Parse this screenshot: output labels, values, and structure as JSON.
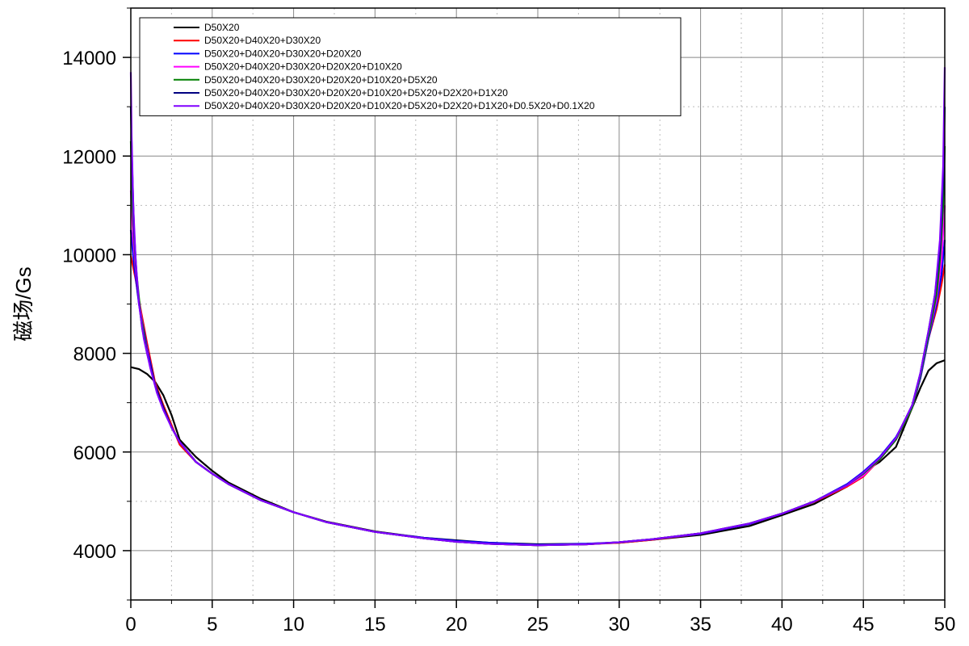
{
  "chart_data": {
    "type": "line",
    "title": "",
    "xlabel": "",
    "ylabel": "磁场/Gs",
    "xlim": [
      0,
      50
    ],
    "ylim": [
      3000,
      15000
    ],
    "x_ticks": [
      0,
      5,
      10,
      15,
      20,
      25,
      30,
      35,
      40,
      45,
      50
    ],
    "y_ticks": [
      4000,
      6000,
      8000,
      10000,
      12000,
      14000
    ],
    "grid": true,
    "legend_position": "top-left",
    "series": [
      {
        "name": "D50X20",
        "color": "#000000",
        "x": [
          0,
          0.5,
          1,
          1.5,
          2,
          2.5,
          3,
          4,
          5,
          6,
          8,
          10,
          12,
          15,
          18,
          20,
          22,
          25,
          28,
          30,
          32,
          35,
          38,
          40,
          42,
          44,
          45,
          46,
          47,
          47.5,
          48,
          48.5,
          49,
          49.5,
          50
        ],
        "y": [
          7720,
          7680,
          7580,
          7420,
          7150,
          6750,
          6250,
          5900,
          5620,
          5380,
          5050,
          4780,
          4590,
          4390,
          4260,
          4210,
          4160,
          4130,
          4140,
          4160,
          4220,
          4320,
          4500,
          4720,
          4950,
          5300,
          5600,
          5800,
          6100,
          6500,
          6900,
          7300,
          7650,
          7800,
          7860
        ]
      },
      {
        "name": "D50X20+D40X20+D30X20",
        "color": "#ff0000",
        "x": [
          0,
          0.3,
          0.6,
          1,
          1.5,
          2,
          2.5,
          3,
          4,
          5,
          6,
          8,
          10,
          12,
          15,
          18,
          20,
          22,
          25,
          28,
          30,
          32,
          35,
          38,
          40,
          42,
          44,
          45,
          46,
          47,
          48,
          48.5,
          49,
          49.5,
          49.8,
          50
        ],
        "y": [
          9980,
          9500,
          8900,
          8200,
          7400,
          6950,
          6550,
          6150,
          5800,
          5560,
          5350,
          5020,
          4780,
          4580,
          4380,
          4250,
          4190,
          4140,
          4110,
          4130,
          4160,
          4220,
          4340,
          4540,
          4750,
          4990,
          5300,
          5500,
          5850,
          6250,
          6900,
          7500,
          8300,
          8900,
          9400,
          9800
        ]
      },
      {
        "name": "D50X20+D40X20+D30X20+D20X20",
        "color": "#0000ff",
        "x": [
          0,
          0.2,
          0.5,
          1,
          1.5,
          2,
          2.5,
          3,
          4,
          5,
          6,
          8,
          10,
          12,
          15,
          18,
          20,
          22,
          25,
          28,
          30,
          32,
          35,
          38,
          40,
          42,
          44,
          45,
          46,
          47,
          48,
          48.5,
          49,
          49.5,
          49.8,
          50
        ],
        "y": [
          10500,
          9800,
          9000,
          8100,
          7350,
          6900,
          6500,
          6200,
          5800,
          5560,
          5350,
          5020,
          4780,
          4580,
          4380,
          4260,
          4200,
          4160,
          4120,
          4140,
          4170,
          4230,
          4340,
          4540,
          4750,
          5000,
          5350,
          5600,
          5900,
          6300,
          6900,
          7500,
          8300,
          9000,
          9600,
          10300
        ]
      },
      {
        "name": "D50X20+D40X20+D30X20+D20X20+D10X20",
        "color": "#ff00ff",
        "x": [
          0,
          0.15,
          0.4,
          0.8,
          1.2,
          1.8,
          2.5,
          3,
          4,
          5,
          6,
          8,
          10,
          12,
          15,
          18,
          20,
          22,
          25,
          28,
          30,
          32,
          35,
          38,
          40,
          42,
          44,
          45,
          46,
          47,
          48,
          48.5,
          49,
          49.5,
          49.8,
          50
        ],
        "y": [
          11300,
          10300,
          9300,
          8400,
          7700,
          7050,
          6500,
          6200,
          5800,
          5560,
          5350,
          5020,
          4780,
          4580,
          4380,
          4250,
          4180,
          4140,
          4110,
          4130,
          4170,
          4230,
          4350,
          4550,
          4750,
          5000,
          5320,
          5520,
          5850,
          6250,
          6900,
          7550,
          8350,
          9100,
          9900,
          11000
        ]
      },
      {
        "name": "D50X20+D40X20+D30X20+D20X20+D10X20+D5X20",
        "color": "#008000",
        "x": [
          0,
          0.1,
          0.3,
          0.6,
          1,
          1.5,
          2,
          2.5,
          3,
          4,
          5,
          6,
          8,
          10,
          12,
          15,
          18,
          20,
          22,
          25,
          28,
          30,
          32,
          35,
          38,
          40,
          42,
          44,
          45,
          46,
          47,
          48,
          48.5,
          49,
          49.5,
          49.7,
          49.9,
          50
        ],
        "y": [
          12300,
          11000,
          9800,
          8800,
          8000,
          7350,
          6900,
          6500,
          6200,
          5800,
          5560,
          5350,
          5020,
          4780,
          4580,
          4380,
          4250,
          4180,
          4140,
          4110,
          4130,
          4170,
          4230,
          4350,
          4550,
          4750,
          5000,
          5330,
          5560,
          5850,
          6250,
          6900,
          7550,
          8350,
          9200,
          9900,
          11000,
          12200
        ]
      },
      {
        "name": "D50X20+D40X20+D30X20+D20X20+D10X20+D5X20+D2X20+D1X20",
        "color": "#000080",
        "x": [
          0,
          0.08,
          0.2,
          0.4,
          0.7,
          1,
          1.5,
          2,
          2.5,
          3,
          4,
          5,
          6,
          8,
          10,
          12,
          15,
          18,
          20,
          22,
          25,
          28,
          30,
          32,
          35,
          38,
          40,
          42,
          44,
          45,
          46,
          47,
          48,
          48.5,
          49,
          49.4,
          49.7,
          49.9,
          50
        ],
        "y": [
          13000,
          11800,
          10500,
          9300,
          8500,
          8000,
          7350,
          6900,
          6500,
          6200,
          5800,
          5560,
          5350,
          5020,
          4780,
          4580,
          4380,
          4250,
          4180,
          4140,
          4110,
          4130,
          4170,
          4230,
          4350,
          4550,
          4750,
          5000,
          5330,
          5580,
          5880,
          6280,
          6950,
          7600,
          8450,
          9200,
          10100,
          11500,
          13000
        ]
      },
      {
        "name": "D50X20+D40X20+D30X20+D20X20+D10X20+D5X20+D2X20+D1X20+D0.5X20+D0.1X20",
        "color": "#8000ff",
        "x": [
          0,
          0.05,
          0.15,
          0.3,
          0.5,
          0.8,
          1.2,
          1.6,
          2,
          2.5,
          3,
          4,
          5,
          6,
          8,
          10,
          12,
          15,
          18,
          20,
          22,
          25,
          28,
          30,
          32,
          35,
          38,
          40,
          42,
          44,
          45,
          46,
          47,
          48,
          48.5,
          49,
          49.4,
          49.7,
          49.9,
          50
        ],
        "y": [
          13700,
          12400,
          11000,
          9900,
          9000,
          8300,
          7700,
          7200,
          6850,
          6500,
          6200,
          5800,
          5560,
          5350,
          5020,
          4780,
          4580,
          4380,
          4250,
          4180,
          4140,
          4110,
          4130,
          4170,
          4230,
          4350,
          4550,
          4750,
          5000,
          5330,
          5580,
          5880,
          6280,
          6950,
          7600,
          8450,
          9200,
          10300,
          11800,
          13800
        ]
      }
    ]
  }
}
